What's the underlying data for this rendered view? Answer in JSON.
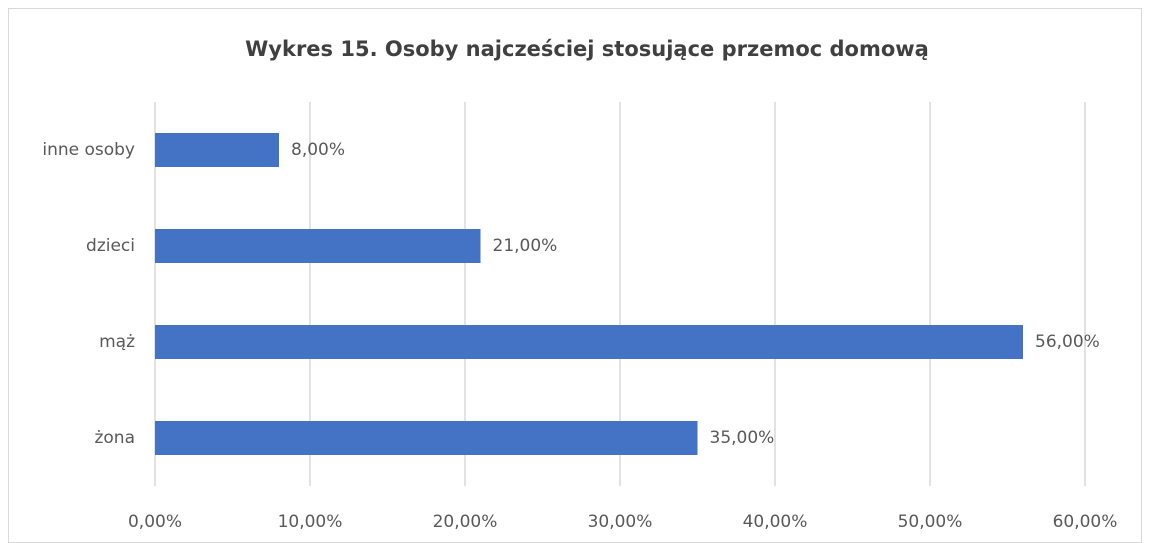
{
  "chart_data": {
    "type": "bar",
    "orientation": "horizontal",
    "title": "Wykres 15. Osoby najcześciej stosujące przemoc domową",
    "categories": [
      "inne osoby",
      "dzieci",
      "mąż",
      "żona"
    ],
    "values": [
      8,
      21,
      56,
      35
    ],
    "value_labels": [
      "8,00%",
      "21,00%",
      "56,00%",
      "35,00%"
    ],
    "color": "#4472c4",
    "xlim": [
      0,
      60
    ],
    "xticks": [
      {
        "value": 0,
        "label": "0,00%"
      },
      {
        "value": 10,
        "label": "10,00%"
      },
      {
        "value": 20,
        "label": "20,00%"
      },
      {
        "value": 30,
        "label": "30,00%"
      },
      {
        "value": 40,
        "label": "40,00%"
      },
      {
        "value": 50,
        "label": "50,00%"
      },
      {
        "value": 60,
        "label": "60,00%"
      }
    ],
    "grid": true
  }
}
